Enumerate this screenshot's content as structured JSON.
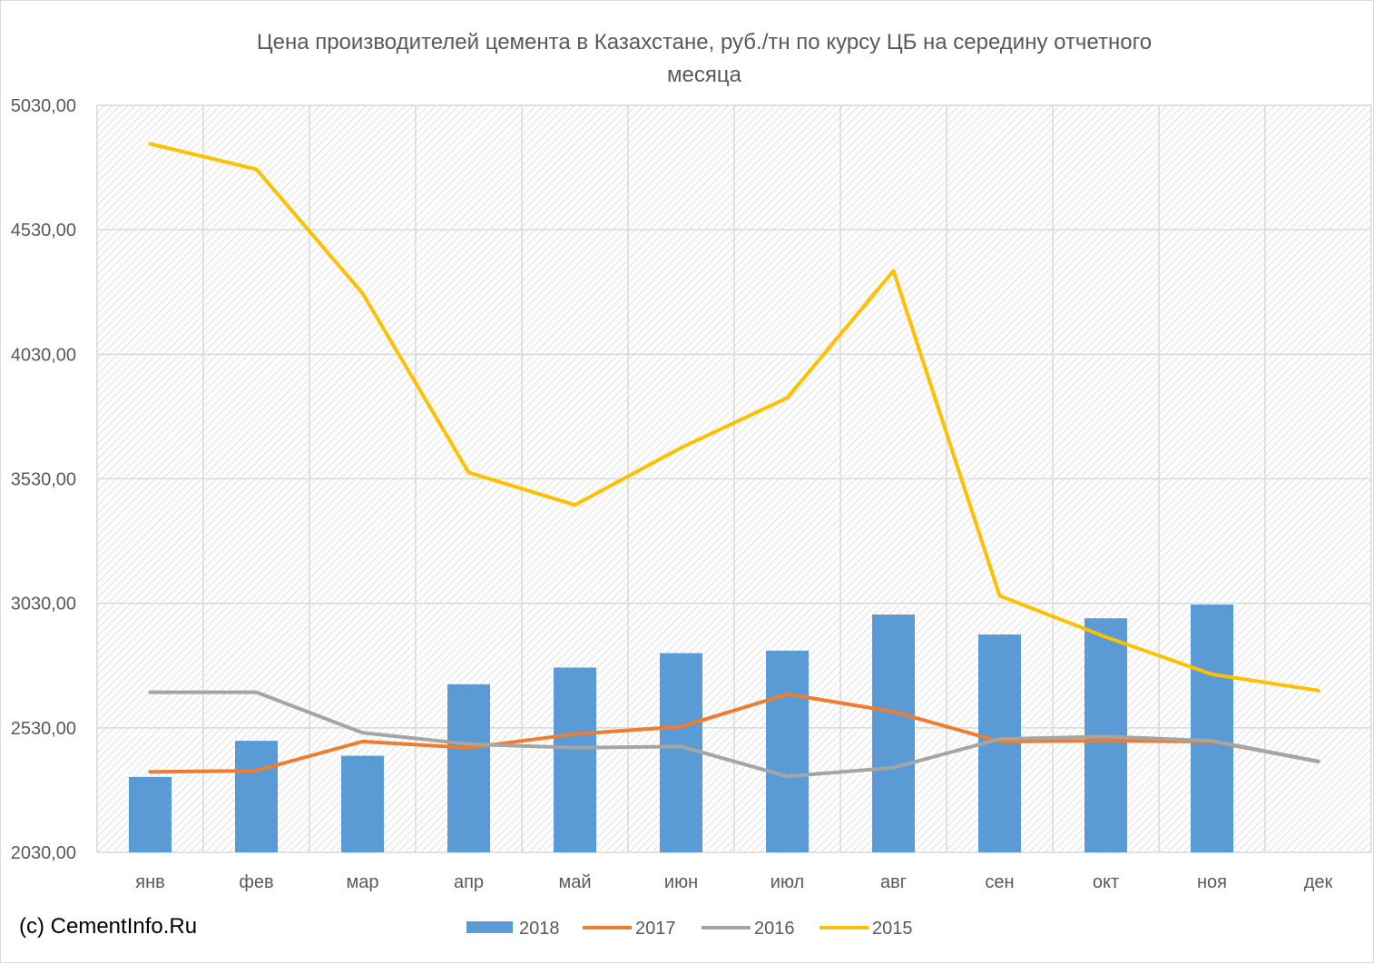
{
  "chart_data": {
    "type": "bar+line",
    "title": "Цена производителей цемента в Казахстане, руб./тн по курсу ЦБ на середину отчетного месяца",
    "title_lines": [
      "Цена производителей цемента в Казахстане, руб./тн по курсу ЦБ на середину отчетного",
      "месяца"
    ],
    "categories": [
      "янв",
      "фев",
      "мар",
      "апр",
      "май",
      "июн",
      "июл",
      "авг",
      "сен",
      "окт",
      "ноя",
      "дек"
    ],
    "y_ticks": [
      "2030,00",
      "2530,00",
      "3030,00",
      "3530,00",
      "4030,00",
      "4530,00",
      "5030,00"
    ],
    "ylim": [
      2030,
      5030
    ],
    "grid": true,
    "legend_position": "bottom",
    "series": [
      {
        "name": "2018",
        "type": "bar",
        "color": "#5b9bd5",
        "values": [
          2333,
          2478,
          2418,
          2705,
          2772,
          2830,
          2840,
          2985,
          2905,
          2970,
          3025,
          null
        ]
      },
      {
        "name": "2017",
        "type": "line",
        "color": "#ed7d31",
        "values": [
          2353,
          2358,
          2475,
          2450,
          2505,
          2535,
          2665,
          2595,
          2475,
          2478,
          2475,
          2395
        ]
      },
      {
        "name": "2016",
        "type": "line",
        "color": "#a5a5a5",
        "values": [
          2673,
          2673,
          2510,
          2465,
          2450,
          2455,
          2335,
          2370,
          2485,
          2495,
          2478,
          2395
        ]
      },
      {
        "name": "2015",
        "type": "line",
        "color": "#ffc000",
        "values": [
          4875,
          4773,
          4275,
          3555,
          3425,
          3655,
          3855,
          4365,
          3060,
          2895,
          2745,
          2680
        ]
      }
    ]
  },
  "watermark": "(c) CementInfo.Ru"
}
